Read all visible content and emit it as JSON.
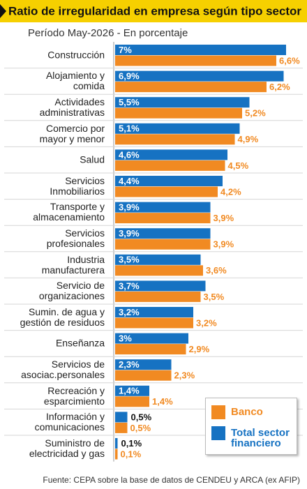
{
  "chart_data": {
    "type": "bar",
    "orientation": "horizontal",
    "title": "Ratio de irregularidad en empresa según tipo sector",
    "subtitle": "Período May-2026 - En porcentaje",
    "source": "Fuente: CEPA sobre la base de datos de CENDEU y ARCA (ex AFIP)",
    "categories": [
      "Construcción",
      "Alojamiento y\ncomida",
      "Actividades\nadministrativas",
      "Comercio por\nmayor y menor",
      "Salud",
      "Servicios\nInmobiliarios",
      "Transporte y\nalmacenamiento",
      "Servicios\nprofesionales",
      "Industria\nmanufacturera",
      "Servicio de\norganizaciones",
      "Sumin. de agua y\ngestión de residuos",
      "Enseñanza",
      "Servicios de\nasociac.personales",
      "Recreación y\nesparcimiento",
      "Información y\ncomunicaciones",
      "Suministro de\nelectricidad y gas"
    ],
    "series": [
      {
        "name": "Total sector financiero",
        "color": "#1672c2",
        "values": [
          7,
          6.9,
          5.5,
          5.1,
          4.6,
          4.4,
          3.9,
          3.9,
          3.5,
          3.7,
          3.2,
          3,
          2.3,
          1.4,
          0.5,
          0.1
        ],
        "value_labels": [
          "7%",
          "6,9%",
          "5,5%",
          "5,1%",
          "4,6%",
          "4,4%",
          "3,9%",
          "3,9%",
          "3,5%",
          "3,7%",
          "3,2%",
          "3%",
          "2,3%",
          "1,4%",
          "0,5%",
          "0,1%"
        ]
      },
      {
        "name": "Banco",
        "color": "#f18a22",
        "values": [
          6.6,
          6.2,
          5.2,
          4.9,
          4.5,
          4.2,
          3.9,
          3.9,
          3.6,
          3.5,
          3.2,
          2.9,
          2.3,
          1.4,
          0.5,
          0.1
        ],
        "value_labels": [
          "6,6%",
          "6,2%",
          "5,2%",
          "4,9%",
          "4,5%",
          "4,2%",
          "3,9%",
          "3,9%",
          "3,6%",
          "3,5%",
          "3,2%",
          "2,9%",
          "2,3%",
          "1,4%",
          "0,5%",
          "0,1%"
        ]
      }
    ]
  }
}
